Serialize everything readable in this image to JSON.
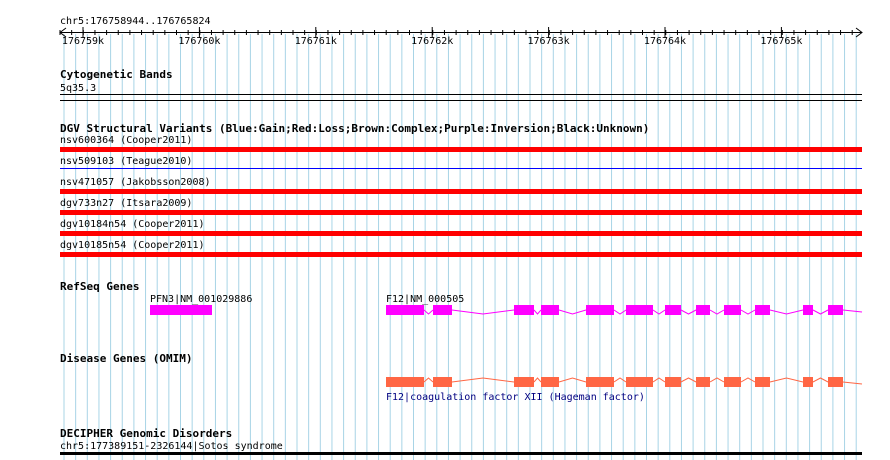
{
  "region_label": "chr5:176758944..176765824",
  "ruler": {
    "start": 176758944,
    "end": 176765824,
    "ticks": [
      "176759k",
      "176760k",
      "176761k",
      "176762k",
      "176763k",
      "176764k",
      "176765k"
    ]
  },
  "tracks": {
    "cytoband": {
      "title": "Cytogenetic Bands",
      "band_label": "5q35.3"
    },
    "dgv": {
      "title": "DGV Structural Variants (Blue:Gain;Red:Loss;Brown:Complex;Purple:Inversion;Black:Unknown)",
      "features": [
        {
          "label": "nsv600364 (Cooper2011)",
          "type": "Loss",
          "color": "#ff0000"
        },
        {
          "label": "nsv509103 (Teague2010)",
          "type": "Gain",
          "color": "#0000ff"
        },
        {
          "label": "nsv471057 (Jakobsson2008)",
          "type": "Loss",
          "color": "#ff0000"
        },
        {
          "label": "dgv733n27 (Itsara2009)",
          "type": "Loss",
          "color": "#ff0000"
        },
        {
          "label": "dgv10184n54 (Cooper2011)",
          "type": "Loss",
          "color": "#ff0000"
        },
        {
          "label": "dgv10185n54 (Cooper2011)",
          "type": "Loss",
          "color": "#ff0000"
        }
      ]
    },
    "refseq": {
      "title": "RefSeq Genes",
      "color": "#ff00ff",
      "genes": [
        {
          "label": "PFN3|NM_001029886",
          "start": 176759797,
          "end": 176760310
        },
        {
          "label": "F12|NM_000505",
          "start": 176761820,
          "end": 176765824
        }
      ]
    },
    "omim": {
      "title": "Disease Genes (OMIM)",
      "color": "#ff6644",
      "gene_label": "F12|coagulation factor XII (Hageman factor)",
      "label_color": "#000080"
    },
    "decipher": {
      "title": "DECIPHER Genomic Disorders",
      "feature_label": "chr5:177389151-2326144|Sotos syndrome"
    }
  }
}
